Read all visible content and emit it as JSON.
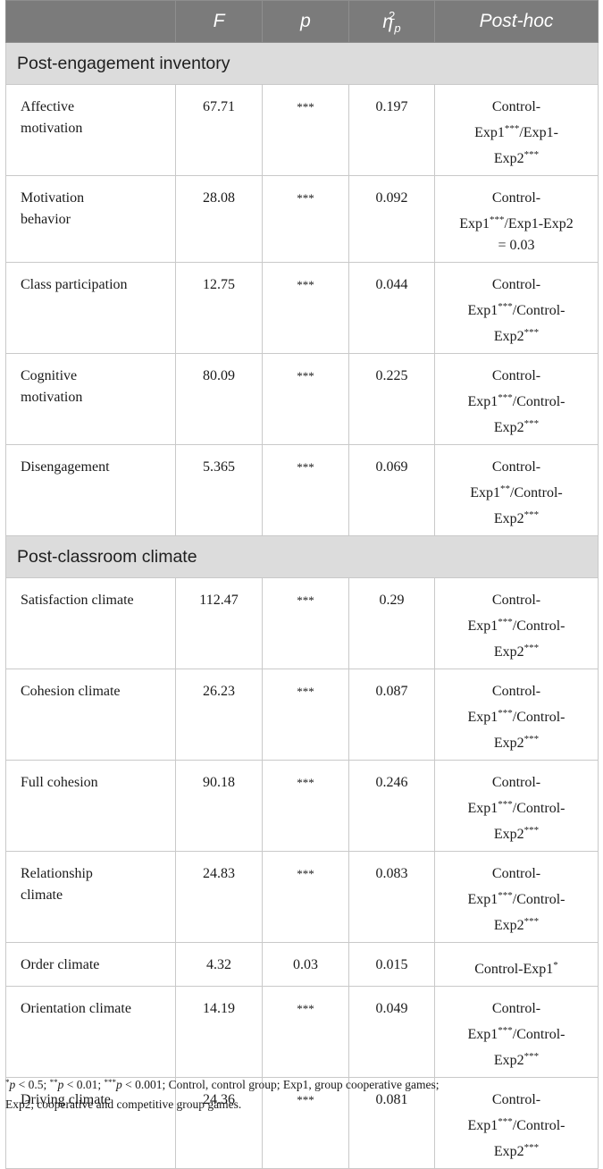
{
  "header": {
    "col_blank": "",
    "col_f": "F",
    "col_p": "p",
    "col_eta_symbol": "η",
    "col_eta_sup": "2",
    "col_eta_sub": "p",
    "col_posthoc": "Post-hoc"
  },
  "sections": [
    {
      "title": "Post-engagement inventory",
      "rows": [
        {
          "label": [
            "Affective",
            "motivation"
          ],
          "f": "67.71",
          "p": "***",
          "eta": "0.197",
          "post": [
            [
              "Control-"
            ],
            [
              "Exp1",
              "***",
              "/Exp1-"
            ],
            [
              "Exp2",
              "***",
              ""
            ]
          ]
        },
        {
          "label": [
            "Motivation",
            "behavior"
          ],
          "f": "28.08",
          "p": "***",
          "eta": "0.092",
          "post": [
            [
              "Control-"
            ],
            [
              "Exp1",
              "***",
              "/Exp1-Exp2"
            ],
            [
              "= 0.03"
            ]
          ]
        },
        {
          "label": [
            "Class participation"
          ],
          "f": "12.75",
          "p": "***",
          "eta": "0.044",
          "post": [
            [
              "Control-"
            ],
            [
              "Exp1",
              "***",
              "/Control-"
            ],
            [
              "Exp2",
              "***",
              ""
            ]
          ]
        },
        {
          "label": [
            "Cognitive",
            "motivation"
          ],
          "f": "80.09",
          "p": "***",
          "eta": "0.225",
          "post": [
            [
              "Control-"
            ],
            [
              "Exp1",
              "***",
              "/Control-"
            ],
            [
              "Exp2",
              "***",
              ""
            ]
          ]
        },
        {
          "label": [
            "Disengagement"
          ],
          "f": "5.365",
          "p": "***",
          "eta": "0.069",
          "post": [
            [
              "Control-"
            ],
            [
              "Exp1",
              "**",
              "/Control-"
            ],
            [
              "Exp2",
              "***",
              ""
            ]
          ]
        }
      ]
    },
    {
      "title": "Post-classroom climate",
      "rows": [
        {
          "label": [
            "Satisfaction climate"
          ],
          "f": "112.47",
          "p": "***",
          "eta": "0.29",
          "post": [
            [
              "Control-"
            ],
            [
              "Exp1",
              "***",
              "/Control-"
            ],
            [
              "Exp2",
              "***",
              ""
            ]
          ]
        },
        {
          "label": [
            "Cohesion climate"
          ],
          "f": "26.23",
          "p": "***",
          "eta": "0.087",
          "post": [
            [
              "Control-"
            ],
            [
              "Exp1",
              "***",
              "/Control-"
            ],
            [
              "Exp2",
              "***",
              ""
            ]
          ]
        },
        {
          "label": [
            "Full cohesion"
          ],
          "f": "90.18",
          "p": "***",
          "eta": "0.246",
          "post": [
            [
              "Control-"
            ],
            [
              "Exp1",
              "***",
              "/Control-"
            ],
            [
              "Exp2",
              "***",
              ""
            ]
          ]
        },
        {
          "label": [
            "Relationship",
            "climate"
          ],
          "f": "24.83",
          "p": "***",
          "eta": "0.083",
          "post": [
            [
              "Control-"
            ],
            [
              "Exp1",
              "***",
              "/Control-"
            ],
            [
              "Exp2",
              "***",
              ""
            ]
          ]
        },
        {
          "label": [
            "Order climate"
          ],
          "f": "4.32",
          "p": "0.03",
          "eta": "0.015",
          "post": [
            [
              "Control-Exp1",
              "*",
              ""
            ]
          ],
          "single": true
        },
        {
          "label": [
            "Orientation climate"
          ],
          "f": "14.19",
          "p": "***",
          "eta": "0.049",
          "post": [
            [
              "Control-"
            ],
            [
              "Exp1",
              "***",
              "/Control-"
            ],
            [
              "Exp2",
              "***",
              ""
            ]
          ]
        },
        {
          "label": [
            "Driving climate"
          ],
          "f": "24.36",
          "p": "***",
          "eta": "0.081",
          "post": [
            [
              "Control-"
            ],
            [
              "Exp1",
              "***",
              "/Control-"
            ],
            [
              "Exp2",
              "***",
              ""
            ]
          ]
        }
      ]
    }
  ],
  "footnote": {
    "parts": [
      {
        "sup": "*"
      },
      {
        "i": "p"
      },
      {
        "t": " < 0.5; "
      },
      {
        "sup": "**"
      },
      {
        "i": "p"
      },
      {
        "t": " < 0.01; "
      },
      {
        "sup": "***"
      },
      {
        "i": "p"
      },
      {
        "t": " < 0.001; Control, control group; Exp1, group cooperative games;"
      },
      {
        "br": true
      },
      {
        "t": "Exp2, cooperative and competitive group games."
      }
    ]
  }
}
